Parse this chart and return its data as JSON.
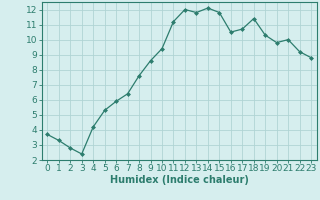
{
  "x": [
    0,
    1,
    2,
    3,
    4,
    5,
    6,
    7,
    8,
    9,
    10,
    11,
    12,
    13,
    14,
    15,
    16,
    17,
    18,
    19,
    20,
    21,
    22,
    23
  ],
  "y": [
    3.7,
    3.3,
    2.8,
    2.4,
    4.2,
    5.3,
    5.9,
    6.4,
    7.6,
    8.6,
    9.4,
    11.2,
    12.0,
    11.8,
    12.1,
    11.8,
    10.5,
    10.7,
    11.4,
    10.3,
    9.8,
    10.0,
    9.2,
    8.8
  ],
  "line_color": "#2d7d6e",
  "marker": "D",
  "marker_size": 2.0,
  "bg_color": "#d6eeee",
  "grid_color": "#b0d4d4",
  "xlabel": "Humidex (Indice chaleur)",
  "ylim": [
    2,
    12.5
  ],
  "xlim": [
    -0.5,
    23.5
  ],
  "yticks": [
    2,
    3,
    4,
    5,
    6,
    7,
    8,
    9,
    10,
    11,
    12
  ],
  "xticks": [
    0,
    1,
    2,
    3,
    4,
    5,
    6,
    7,
    8,
    9,
    10,
    11,
    12,
    13,
    14,
    15,
    16,
    17,
    18,
    19,
    20,
    21,
    22,
    23
  ],
  "tick_color": "#2d7d6e",
  "label_color": "#2d7d6e",
  "axes_color": "#2d7d6e",
  "xlabel_fontsize": 7,
  "tick_fontsize": 6.5
}
